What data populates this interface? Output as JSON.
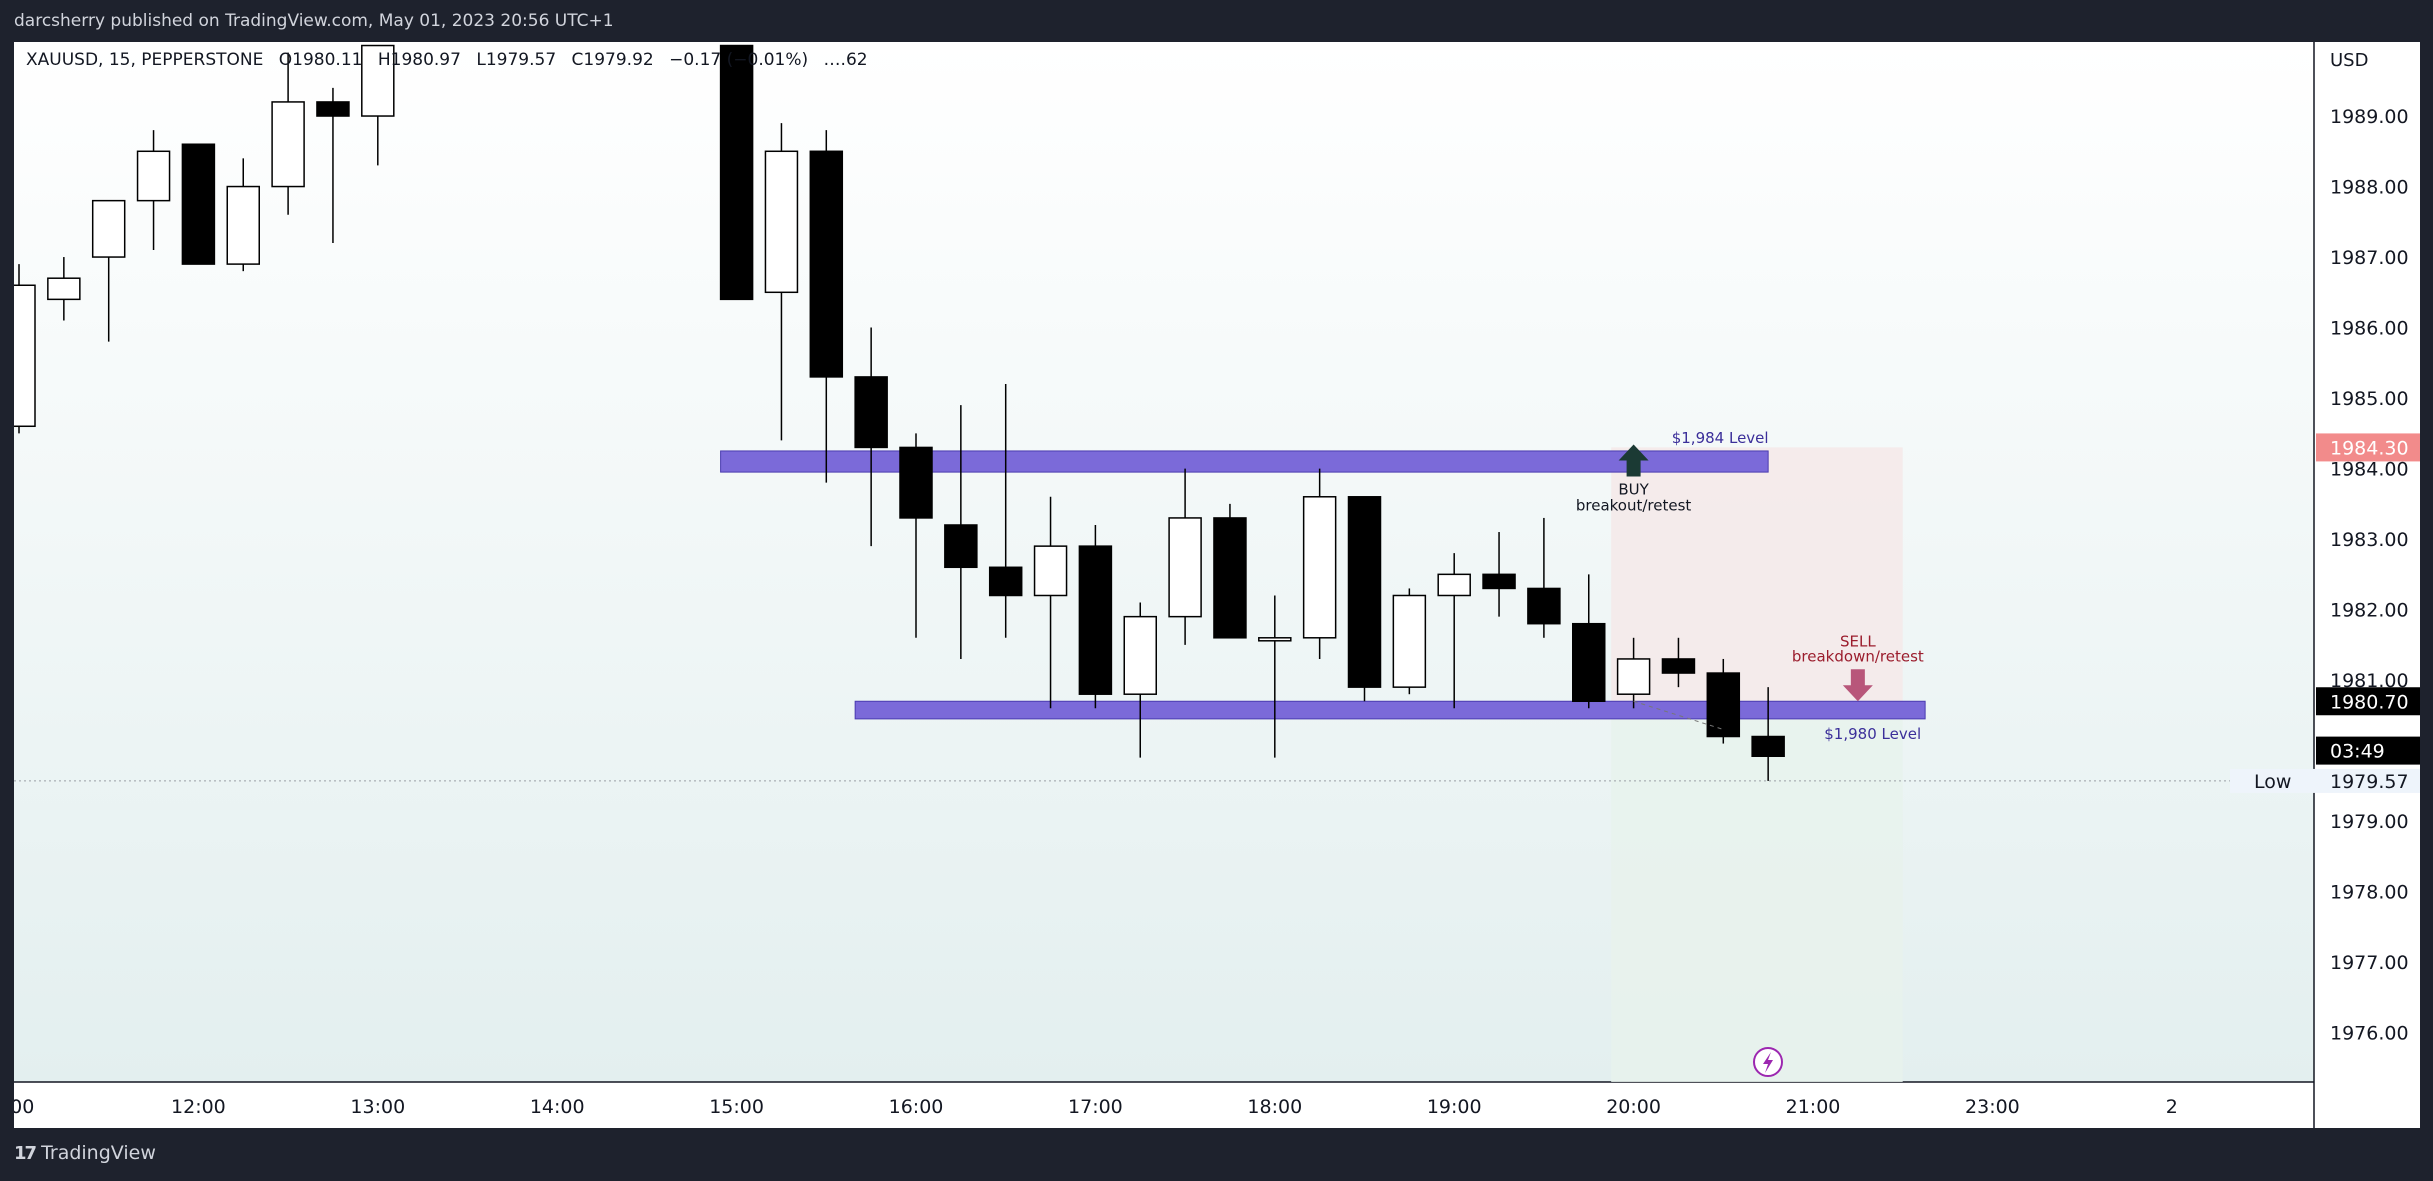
{
  "header": {
    "publish_text": "darcsherry published on TradingView.com, May 01, 2023 20:56 UTC+1"
  },
  "symbol_bar": {
    "symbol": "XAUUSD, 15, PEPPERSTONE",
    "open": "O1980.11",
    "high": "H1980.97",
    "low": "L1979.57",
    "close": "C1979.92",
    "change": "−0.17 (−0.01%)",
    "extra": "….62"
  },
  "footer": {
    "logo_icon": "tradingview-logo-icon",
    "brand": "TradingView"
  },
  "colors": {
    "page_bg": "#1e222d",
    "bull_fill": "#ffffff",
    "bear_fill": "#000000",
    "level_band": "#7b6ad9",
    "level_text": "#3b2f9a",
    "buy_arrow": "#1b3a34",
    "sell_arrow": "#b8567a",
    "sell_text": "#9b1d2d",
    "target_zone": "#f4e9e9",
    "stop_zone": "#e8f2ec",
    "price_badge_red": "#f28b8b",
    "price_badge_dark": "#000000",
    "alert_icon": "#9c27b0"
  },
  "chart_data": {
    "type": "candlestick",
    "symbol": "XAUUSD",
    "interval": "15",
    "currency": "USD",
    "ylim": [
      1975.3,
      1990.05
    ],
    "y_ticks": [
      1976,
      1977,
      1978,
      1979,
      1980,
      1981,
      1982,
      1983,
      1984,
      1985,
      1986,
      1987,
      1988,
      1989
    ],
    "y_tick_labels": [
      "1976.00",
      "1977.00",
      "1978.00",
      "1979.00",
      "1980.00",
      "1981.00",
      "1982.00",
      "1983.00",
      "1984.00",
      "1985.00",
      "1986.00",
      "1987.00",
      "1988.00",
      "1989.00"
    ],
    "x_ticks": [
      {
        "t": 0,
        "label": ":00"
      },
      {
        "t": 4,
        "label": "12:00"
      },
      {
        "t": 8,
        "label": "13:00"
      },
      {
        "t": 12,
        "label": "14:00"
      },
      {
        "t": 16,
        "label": "15:00"
      },
      {
        "t": 20,
        "label": "16:00"
      },
      {
        "t": 24,
        "label": "17:00"
      },
      {
        "t": 28,
        "label": "18:00"
      },
      {
        "t": 32,
        "label": "19:00"
      },
      {
        "t": 36,
        "label": "20:00"
      },
      {
        "t": 40,
        "label": "21:00"
      },
      {
        "t": 44,
        "label": "23:00"
      },
      {
        "t": 48,
        "label": "2"
      }
    ],
    "candles": [
      {
        "t": 0,
        "o": 1984.6,
        "h": 1986.9,
        "l": 1984.5,
        "c": 1986.6
      },
      {
        "t": 1,
        "o": 1986.4,
        "h": 1987.0,
        "l": 1986.1,
        "c": 1986.7
      },
      {
        "t": 2,
        "o": 1987.0,
        "h": 1987.8,
        "l": 1985.8,
        "c": 1987.8
      },
      {
        "t": 3,
        "o": 1987.8,
        "h": 1988.8,
        "l": 1987.1,
        "c": 1988.5
      },
      {
        "t": 4,
        "o": 1988.6,
        "h": 1988.6,
        "l": 1986.9,
        "c": 1986.9
      },
      {
        "t": 5,
        "o": 1986.9,
        "h": 1988.4,
        "l": 1986.8,
        "c": 1988.0
      },
      {
        "t": 6,
        "o": 1988.0,
        "h": 1989.9,
        "l": 1987.6,
        "c": 1989.2
      },
      {
        "t": 7,
        "o": 1989.2,
        "h": 1989.4,
        "l": 1987.2,
        "c": 1989.0
      },
      {
        "t": 8,
        "o": 1989.0,
        "h": 1990.0,
        "l": 1988.3,
        "c": 1990.0
      },
      {
        "t": 16,
        "o": 1990.0,
        "h": 1990.0,
        "l": 1986.4,
        "c": 1986.4
      },
      {
        "t": 17,
        "o": 1986.5,
        "h": 1988.9,
        "l": 1984.4,
        "c": 1988.5
      },
      {
        "t": 18,
        "o": 1988.5,
        "h": 1988.8,
        "l": 1983.8,
        "c": 1985.3
      },
      {
        "t": 19,
        "o": 1985.3,
        "h": 1986.0,
        "l": 1982.9,
        "c": 1984.3
      },
      {
        "t": 20,
        "o": 1984.3,
        "h": 1984.5,
        "l": 1981.6,
        "c": 1983.3
      },
      {
        "t": 21,
        "o": 1983.2,
        "h": 1984.9,
        "l": 1981.3,
        "c": 1982.6
      },
      {
        "t": 22,
        "o": 1982.6,
        "h": 1985.2,
        "l": 1981.6,
        "c": 1982.2
      },
      {
        "t": 23,
        "o": 1982.2,
        "h": 1983.6,
        "l": 1980.6,
        "c": 1982.9
      },
      {
        "t": 24,
        "o": 1982.9,
        "h": 1983.2,
        "l": 1980.6,
        "c": 1980.8
      },
      {
        "t": 25,
        "o": 1980.8,
        "h": 1982.1,
        "l": 1979.9,
        "c": 1981.9
      },
      {
        "t": 26,
        "o": 1981.9,
        "h": 1984.0,
        "l": 1981.5,
        "c": 1983.3
      },
      {
        "t": 27,
        "o": 1983.3,
        "h": 1983.5,
        "l": 1981.6,
        "c": 1981.6
      },
      {
        "t": 28,
        "o": 1981.6,
        "h": 1982.2,
        "l": 1979.9,
        "c": 1981.6
      },
      {
        "t": 29,
        "o": 1981.6,
        "h": 1984.0,
        "l": 1981.3,
        "c": 1983.6
      },
      {
        "t": 30,
        "o": 1983.6,
        "h": 1983.6,
        "l": 1980.7,
        "c": 1980.9
      },
      {
        "t": 31,
        "o": 1980.9,
        "h": 1982.3,
        "l": 1980.8,
        "c": 1982.2
      },
      {
        "t": 32,
        "o": 1982.2,
        "h": 1982.8,
        "l": 1980.6,
        "c": 1982.5
      },
      {
        "t": 33,
        "o": 1982.5,
        "h": 1983.1,
        "l": 1981.9,
        "c": 1982.3
      },
      {
        "t": 34,
        "o": 1982.3,
        "h": 1983.3,
        "l": 1981.6,
        "c": 1981.8
      },
      {
        "t": 35,
        "o": 1981.8,
        "h": 1982.5,
        "l": 1980.6,
        "c": 1980.7
      },
      {
        "t": 36,
        "o": 1980.8,
        "h": 1981.6,
        "l": 1980.6,
        "c": 1981.3
      },
      {
        "t": 37,
        "o": 1981.3,
        "h": 1981.6,
        "l": 1980.9,
        "c": 1981.1
      },
      {
        "t": 38,
        "o": 1981.1,
        "h": 1981.3,
        "l": 1980.1,
        "c": 1980.2
      },
      {
        "t": 39,
        "o": 1980.2,
        "h": 1980.9,
        "l": 1979.57,
        "c": 1979.92
      }
    ],
    "levels": [
      {
        "label": "$1,984 Level",
        "from_t": 16,
        "to_t": 39,
        "low": 1983.95,
        "high": 1984.25
      },
      {
        "label": "$1,980 Level",
        "from_t": 19,
        "to_t": 42.5,
        "low": 1980.45,
        "high": 1980.7
      }
    ],
    "annotations": [
      {
        "kind": "buy",
        "line1": "BUY",
        "line2": "breakout/retest",
        "t": 36,
        "price": 1984.2
      },
      {
        "kind": "sell",
        "line1": "SELL",
        "line2": "breakdown/retest",
        "t": 41,
        "price": 1980.7
      }
    ],
    "zones": [
      {
        "kind": "target",
        "from_t": 35.5,
        "to_t": 42,
        "top": 1984.3,
        "bottom": 1980.7
      },
      {
        "kind": "stop",
        "from_t": 35.5,
        "to_t": 42,
        "top": 1980.7,
        "bottom": 1975.3
      }
    ],
    "price_badges": [
      {
        "kind": "red",
        "value": "1984.30",
        "price": 1984.3
      },
      {
        "kind": "dark",
        "value": "1980.70",
        "price": 1980.7
      },
      {
        "kind": "dark",
        "value": "03:49",
        "price": 1980.0
      },
      {
        "kind": "low",
        "value": "1979.57",
        "price": 1979.57,
        "label": "Low"
      }
    ]
  }
}
